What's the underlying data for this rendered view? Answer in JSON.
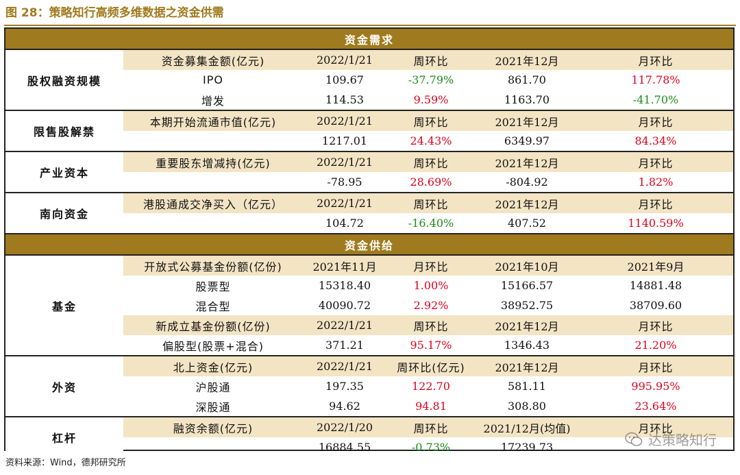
{
  "title": "图 28：策略知行高频多维数据之资金供需",
  "source_note": "资料来源：Wind，德邦研究所",
  "watermark": "达策略知行",
  "colors": {
    "gold": "#a07a1e",
    "header_fill": "#f3e4c4",
    "positive": "#e0001b",
    "negative": "#1a8c1a"
  },
  "sections": [
    {
      "label": "资金需求",
      "groups": [
        {
          "label": "股权融资规模",
          "rows": [
            {
              "type": "header",
              "cells": [
                "资金募集金额(亿元)",
                "2022/1/21",
                "周环比",
                "2021年12月",
                "月环比"
              ]
            },
            {
              "type": "data",
              "cells": [
                "IPO",
                "109.67",
                "-37.79%",
                "861.70",
                "117.78%"
              ],
              "tones": [
                "",
                "",
                "down",
                "",
                "up"
              ]
            },
            {
              "type": "data",
              "cells": [
                "增发",
                "114.53",
                "9.59%",
                "1163.70",
                "-41.70%"
              ],
              "tones": [
                "",
                "",
                "up",
                "",
                "down"
              ]
            }
          ]
        },
        {
          "label": "限售股解禁",
          "rows": [
            {
              "type": "header",
              "cells": [
                "本期开始流通市值(亿元)",
                "2022/1/21",
                "周环比",
                "2021年12月",
                "月环比"
              ]
            },
            {
              "type": "data",
              "cells": [
                "",
                "1217.01",
                "24.43%",
                "6349.97",
                "84.34%"
              ],
              "tones": [
                "",
                "",
                "up",
                "",
                "up"
              ]
            }
          ]
        },
        {
          "label": "产业资本",
          "rows": [
            {
              "type": "header",
              "cells": [
                "重要股东增减持(亿元)",
                "2022/1/21",
                "周环比",
                "2021年12月",
                "月环比"
              ]
            },
            {
              "type": "data",
              "cells": [
                "",
                "-78.95",
                "28.69%",
                "-804.92",
                "1.82%"
              ],
              "tones": [
                "",
                "",
                "up",
                "",
                "up"
              ]
            }
          ]
        },
        {
          "label": "南向资金",
          "rows": [
            {
              "type": "header",
              "cells": [
                "港股通成交净买入（亿元）",
                "2022/1/21",
                "周环比",
                "2021年12月",
                "月环比"
              ]
            },
            {
              "type": "data",
              "cells": [
                "",
                "104.72",
                "-16.40%",
                "407.52",
                "1140.59%"
              ],
              "tones": [
                "",
                "",
                "down",
                "",
                "up"
              ]
            }
          ]
        }
      ]
    },
    {
      "label": "资金供给",
      "groups": [
        {
          "label": "基金",
          "rows": [
            {
              "type": "header",
              "cells": [
                "开放式公募基金份额(亿份)",
                "2021年11月",
                "月环比",
                "2021年10月",
                "2021年9月"
              ]
            },
            {
              "type": "data",
              "cells": [
                "股票型",
                "15318.40",
                "1.00%",
                "15166.57",
                "14881.48"
              ],
              "tones": [
                "",
                "",
                "up",
                "",
                ""
              ]
            },
            {
              "type": "data",
              "cells": [
                "混合型",
                "40090.72",
                "2.92%",
                "38952.75",
                "38709.60"
              ],
              "tones": [
                "",
                "",
                "up",
                "",
                ""
              ]
            },
            {
              "type": "header",
              "cells": [
                "新成立基金份额(亿份)",
                "2022/1/21",
                "周环比",
                "2021年12月",
                "月环比"
              ]
            },
            {
              "type": "data",
              "cells": [
                "偏股型(股票+混合)",
                "371.21",
                "95.17%",
                "1346.43",
                "21.20%"
              ],
              "tones": [
                "",
                "",
                "up",
                "",
                "up"
              ]
            }
          ]
        },
        {
          "label": "外资",
          "rows": [
            {
              "type": "header",
              "cells": [
                "北上资金(亿元)",
                "2022/1/21",
                "周环比(亿元)",
                "2021年12月",
                "月环比"
              ]
            },
            {
              "type": "data",
              "cells": [
                "沪股通",
                "197.35",
                "122.70",
                "581.11",
                "995.95%"
              ],
              "tones": [
                "",
                "",
                "up",
                "",
                "up"
              ]
            },
            {
              "type": "data",
              "cells": [
                "深股通",
                "94.62",
                "94.81",
                "308.80",
                "23.64%"
              ],
              "tones": [
                "",
                "",
                "up",
                "",
                "up"
              ]
            }
          ]
        },
        {
          "label": "杠杆",
          "rows": [
            {
              "type": "header",
              "cells": [
                "融资余额(亿元)",
                "2022/1/20",
                "周环比",
                "2021/12月(均值)",
                "月环比"
              ]
            },
            {
              "type": "data",
              "cells": [
                "",
                "16884.55",
                "-0.73%",
                "17239.73",
                ""
              ],
              "tones": [
                "",
                "",
                "down",
                "",
                ""
              ]
            }
          ]
        }
      ]
    }
  ]
}
